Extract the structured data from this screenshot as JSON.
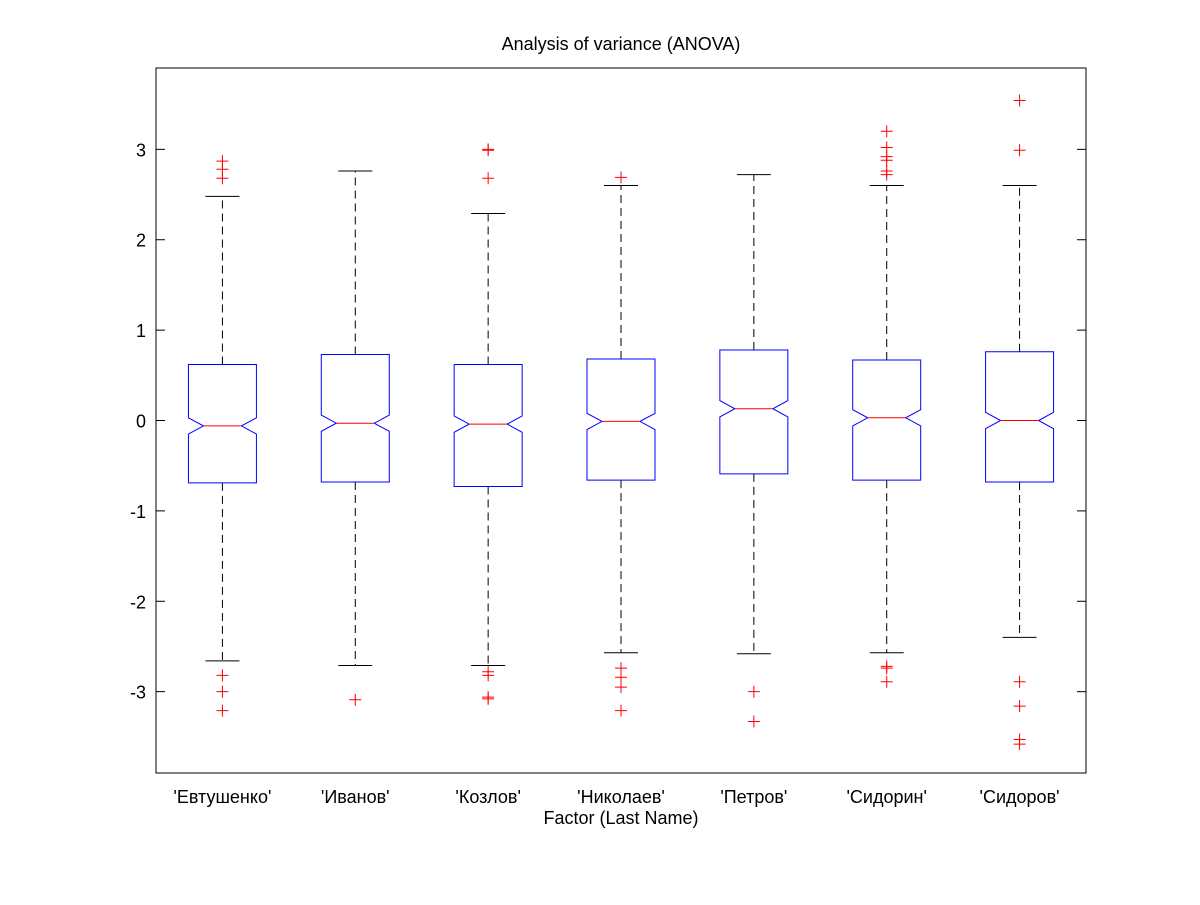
{
  "chart_data": {
    "type": "box",
    "title": "Analysis of variance (ANOVA)",
    "xlabel": "Factor (Last Name)",
    "ylabel": "",
    "ylim": [
      -3.9,
      3.9
    ],
    "yticks": [
      -3,
      -2,
      -1,
      0,
      1,
      2,
      3
    ],
    "ytick_labels": [
      "-3",
      "-2",
      "-1",
      "0",
      "1",
      "2",
      "3"
    ],
    "notched": true,
    "grid": false,
    "colors": {
      "box": "#0000ff",
      "median": "#ff0000",
      "whisker": "#000000",
      "outlier": "#ff0000",
      "axes": "#000000",
      "background": "#ffffff"
    },
    "categories": [
      "'Евтушенко'",
      "'Иванов'",
      "'Козлов'",
      "'Николаев'",
      "'Петров'",
      "'Сидорин'",
      "'Сидоров'"
    ],
    "boxes": [
      {
        "name": "'Евтушенко'",
        "whisker_high": 2.48,
        "q3": 0.62,
        "median": -0.06,
        "q1": -0.69,
        "whisker_low": -2.66,
        "notch_high": 0.03,
        "notch_low": -0.15,
        "outliers": [
          2.87,
          2.78,
          2.68,
          -2.82,
          -3.0,
          -3.21
        ]
      },
      {
        "name": "'Иванов'",
        "whisker_high": 2.76,
        "q3": 0.73,
        "median": -0.03,
        "q1": -0.68,
        "whisker_low": -2.71,
        "notch_high": 0.06,
        "notch_low": -0.12,
        "outliers": [
          -3.09
        ]
      },
      {
        "name": "'Козлов'",
        "whisker_high": 2.29,
        "q3": 0.62,
        "median": -0.04,
        "q1": -0.73,
        "whisker_low": -2.71,
        "notch_high": 0.05,
        "notch_low": -0.13,
        "outliers": [
          3.0,
          2.99,
          2.68,
          -2.78,
          -2.82,
          -3.06,
          -3.08
        ]
      },
      {
        "name": "'Николаев'",
        "whisker_high": 2.6,
        "q3": 0.68,
        "median": -0.01,
        "q1": -0.66,
        "whisker_low": -2.57,
        "notch_high": 0.08,
        "notch_low": -0.1,
        "outliers": [
          2.69,
          -2.74,
          -2.84,
          -2.95,
          -3.21
        ]
      },
      {
        "name": "'Петров'",
        "whisker_high": 2.72,
        "q3": 0.78,
        "median": 0.13,
        "q1": -0.59,
        "whisker_low": -2.58,
        "notch_high": 0.22,
        "notch_low": 0.04,
        "outliers": [
          -3.0,
          -3.33
        ]
      },
      {
        "name": "'Сидорин'",
        "whisker_high": 2.6,
        "q3": 0.67,
        "median": 0.03,
        "q1": -0.66,
        "whisker_low": -2.57,
        "notch_high": 0.12,
        "notch_low": -0.06,
        "outliers": [
          3.2,
          3.02,
          2.92,
          2.88,
          2.76,
          2.72,
          -2.72,
          -2.74,
          -2.89
        ]
      },
      {
        "name": "'Сидоров'",
        "whisker_high": 2.6,
        "q3": 0.76,
        "median": 0.0,
        "q1": -0.68,
        "whisker_low": -2.4,
        "notch_high": 0.09,
        "notch_low": -0.09,
        "outliers": [
          3.54,
          2.99,
          -2.89,
          -3.16,
          -3.53,
          -3.58
        ]
      }
    ]
  }
}
